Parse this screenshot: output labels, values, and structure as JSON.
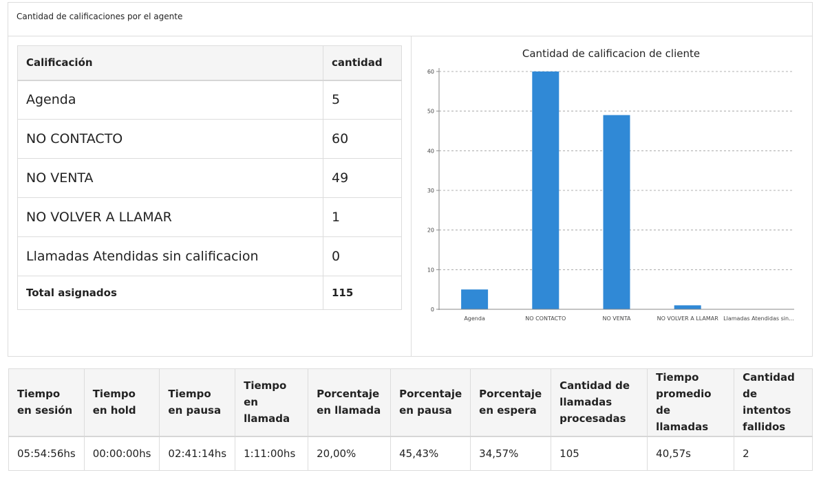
{
  "panel": {
    "title": "Cantidad de calificaciones por el agente"
  },
  "qualification_table": {
    "headers": [
      "Calificación",
      "cantidad"
    ],
    "rows": [
      [
        "Agenda",
        "5"
      ],
      [
        "NO CONTACTO",
        "60"
      ],
      [
        "NO VENTA",
        "49"
      ],
      [
        "NO VOLVER A LLAMAR",
        "1"
      ],
      [
        "Llamadas Atendidas sin calificacion",
        "0"
      ]
    ],
    "total": [
      "Total asignados",
      "115"
    ]
  },
  "chart_data": {
    "type": "bar",
    "title": "Cantidad de calificacion de cliente",
    "categories": [
      "Agenda",
      "NO CONTACTO",
      "NO VENTA",
      "NO VOLVER A LLAMAR",
      "Llamadas Atendidas sin..."
    ],
    "values": [
      5,
      60,
      49,
      1,
      0
    ],
    "ylim": [
      0,
      60
    ],
    "yticks": [
      0,
      10,
      20,
      30,
      40,
      50,
      60
    ],
    "grid": true,
    "bar_color": "#3089d6"
  },
  "stats_table": {
    "headers": [
      "Tiempo en sesión",
      "Tiempo en hold",
      "Tiempo en pausa",
      "Tiempo en llamada",
      "Porcentaje en llamada",
      "Porcentaje en pausa",
      "Porcentaje en espera",
      "Cantidad de llamadas procesadas",
      "Tiempo promedio de llamadas",
      "Cantidad de intentos fallidos"
    ],
    "values": [
      "05:54:56hs",
      "00:00:00hs",
      "02:41:14hs",
      "1:11:00hs",
      "20,00%",
      "45,43%",
      "34,57%",
      "105",
      "40,57s",
      "2"
    ]
  }
}
